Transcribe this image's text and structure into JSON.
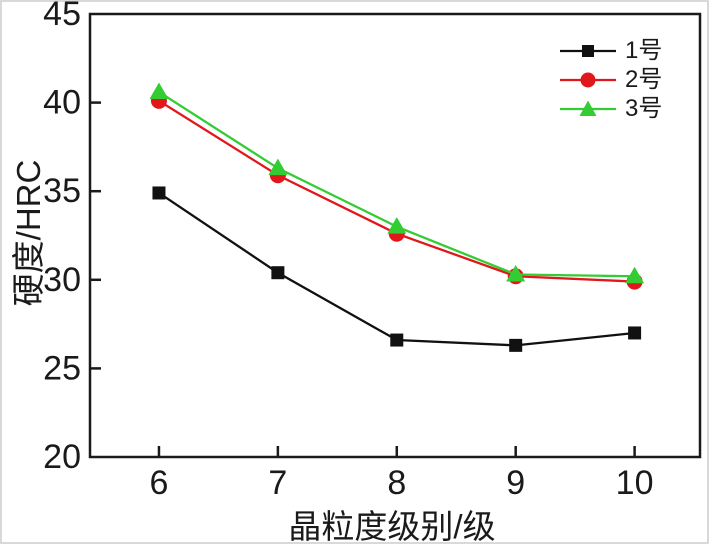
{
  "chart_data": {
    "type": "line",
    "x": [
      6,
      7,
      8,
      9,
      10
    ],
    "series": [
      {
        "name": "1号",
        "color": "#111111",
        "marker": "square",
        "values": [
          34.9,
          30.4,
          26.6,
          26.3,
          27.0
        ]
      },
      {
        "name": "2号",
        "color": "#e0181b",
        "marker": "circle",
        "values": [
          40.1,
          35.9,
          32.6,
          30.2,
          29.9
        ]
      },
      {
        "name": "3号",
        "color": "#33cc33",
        "marker": "triangle",
        "values": [
          40.6,
          36.3,
          33.0,
          30.3,
          30.2
        ]
      }
    ],
    "title": "",
    "xlabel": "晶粒度级别/级",
    "ylabel": "硬度/HRC",
    "xlim": [
      5.42,
      10.55
    ],
    "ylim": [
      20,
      45
    ],
    "x_ticks": [
      6,
      7,
      8,
      9,
      10
    ],
    "y_ticks": [
      20,
      25,
      30,
      35,
      40,
      45
    ],
    "grid": false,
    "legend_position": "top-right",
    "frame_color": "#1a1a1a",
    "background": "#ffffff"
  }
}
